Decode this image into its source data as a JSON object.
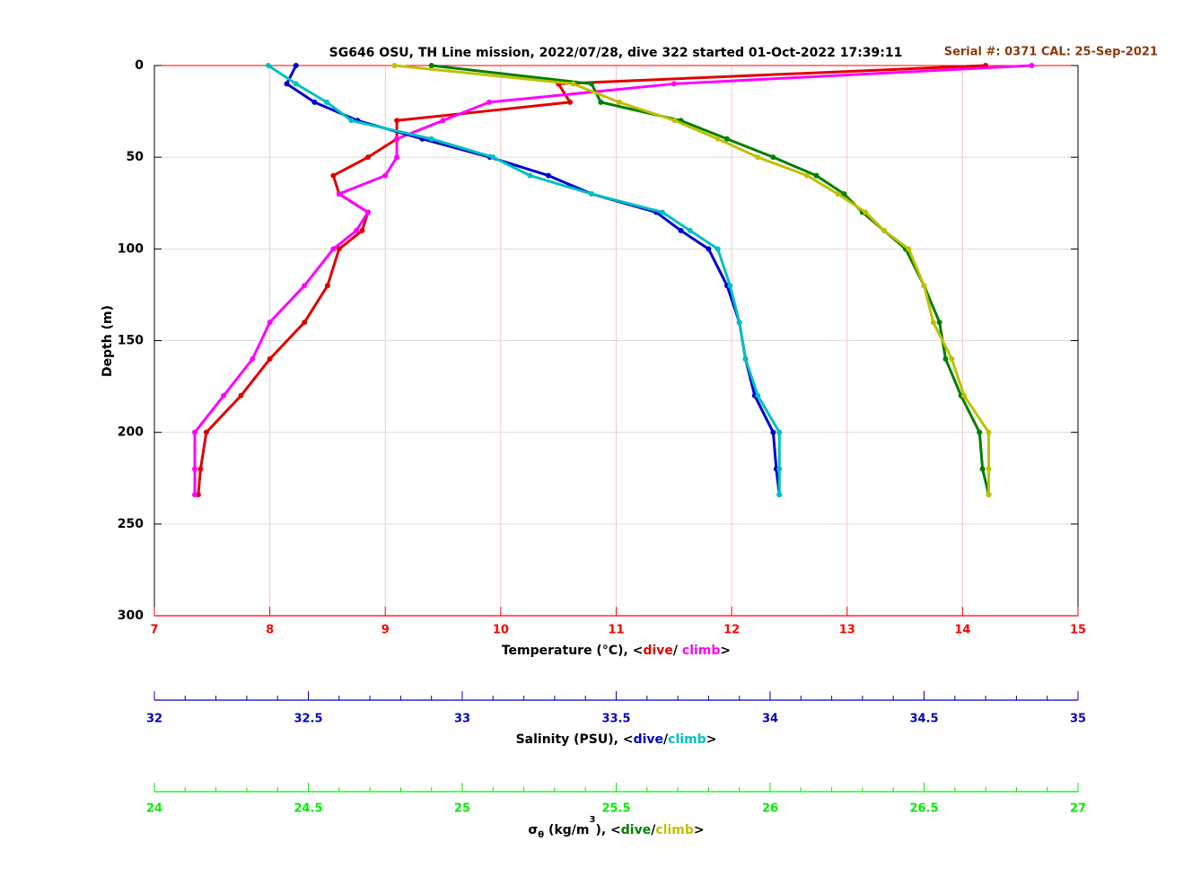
{
  "chart_data": {
    "type": "scatter",
    "title": "SG646 OSU, TH Line mission, 2022/07/28, dive 322 started 01-Oct-2022 17:39:11",
    "annotation": "Serial #: 0371  CAL: 25-Sep-2021",
    "ylabel": "Depth (m)",
    "ylim": [
      0,
      300
    ],
    "yticks": [
      0,
      50,
      100,
      150,
      200,
      250,
      300
    ],
    "y_reversed": true,
    "grid": true,
    "depth": [
      0,
      10,
      20,
      30,
      40,
      50,
      60,
      70,
      80,
      90,
      100,
      120,
      140,
      160,
      180,
      200,
      220,
      234
    ],
    "axes": [
      {
        "lim": [
          7,
          15
        ],
        "ticks": [
          7,
          8,
          9,
          10,
          11,
          12,
          13,
          14,
          15
        ],
        "minor_ticks": [],
        "color": "#ff0000",
        "label": [
          {
            "text": "Temperature (°C), <"
          }
        ],
        "sep": "/ ",
        "end": ">"
      },
      {
        "lim": [
          32,
          35
        ],
        "ticks": [
          32,
          32.5,
          33,
          33.5,
          34,
          34.5,
          35
        ],
        "minor_ticks": [
          32.1,
          32.2,
          32.3,
          32.4,
          32.6,
          32.7,
          32.8,
          32.9,
          33.1,
          33.2,
          33.3,
          33.4,
          33.6,
          33.7,
          33.8,
          33.9,
          34.1,
          34.2,
          34.3,
          34.4,
          34.6,
          34.7,
          34.8,
          34.9
        ],
        "color": "#0000c0",
        "label": [
          {
            "text": "Salinity (PSU), <"
          }
        ],
        "sep": "/",
        "end": ">"
      },
      {
        "lim": [
          24,
          27
        ],
        "ticks": [
          24,
          24.5,
          25,
          25.5,
          26,
          26.5,
          27
        ],
        "minor_ticks": [
          24.1,
          24.2,
          24.3,
          24.4,
          24.6,
          24.7,
          24.8,
          24.9,
          25.1,
          25.2,
          25.3,
          25.4,
          25.6,
          25.7,
          25.8,
          25.9,
          26.1,
          26.2,
          26.3,
          26.4,
          26.6,
          26.7,
          26.8,
          26.9
        ],
        "color": "#00ee00",
        "label": [
          {
            "text": "σ"
          },
          {
            "text": "θ",
            "shift": "sub"
          },
          {
            "text": " (kg/m"
          },
          {
            "text": "3",
            "shift": "sup"
          },
          {
            "text": "), <"
          }
        ],
        "sep": "/",
        "end": ">"
      }
    ],
    "series": [
      {
        "name": "dive",
        "axis": 0,
        "color": "#e00000",
        "values": [
          14.2,
          10.5,
          10.6,
          9.1,
          9.1,
          8.85,
          8.55,
          8.6,
          8.85,
          8.8,
          8.6,
          8.5,
          8.3,
          8.0,
          7.75,
          7.45,
          7.4,
          7.38
        ]
      },
      {
        "name": "climb",
        "axis": 0,
        "color": "#ff00ff",
        "values": [
          14.6,
          11.5,
          9.9,
          9.5,
          9.1,
          9.1,
          9.0,
          8.6,
          8.85,
          8.75,
          8.55,
          8.3,
          8.0,
          7.85,
          7.6,
          7.35,
          7.35,
          7.35
        ]
      },
      {
        "name": "dive",
        "axis": 1,
        "color": "#0000d0",
        "values": [
          32.46,
          32.43,
          32.52,
          32.66,
          32.87,
          33.09,
          33.28,
          33.42,
          33.63,
          33.71,
          33.8,
          33.86,
          33.9,
          33.92,
          33.95,
          34.01,
          34.02,
          34.03
        ]
      },
      {
        "name": "climb",
        "axis": 1,
        "color": "#00c0c0",
        "values": [
          32.37,
          32.46,
          32.56,
          32.64,
          32.9,
          33.1,
          33.22,
          33.42,
          33.65,
          33.74,
          33.83,
          33.87,
          33.9,
          33.92,
          33.96,
          34.03,
          34.03,
          34.03
        ]
      },
      {
        "name": "dive",
        "axis": 2,
        "color": "#007f00",
        "values": [
          24.9,
          25.42,
          25.45,
          25.71,
          25.86,
          26.01,
          26.15,
          26.24,
          26.3,
          26.37,
          26.44,
          26.5,
          26.55,
          26.57,
          26.62,
          26.68,
          26.69,
          26.71
        ]
      },
      {
        "name": "climb",
        "axis": 2,
        "color": "#c0c000",
        "values": [
          24.78,
          25.36,
          25.51,
          25.69,
          25.83,
          25.96,
          26.12,
          26.22,
          26.31,
          26.37,
          26.45,
          26.5,
          26.53,
          26.59,
          26.63,
          26.71,
          26.71,
          26.71
        ]
      }
    ]
  }
}
